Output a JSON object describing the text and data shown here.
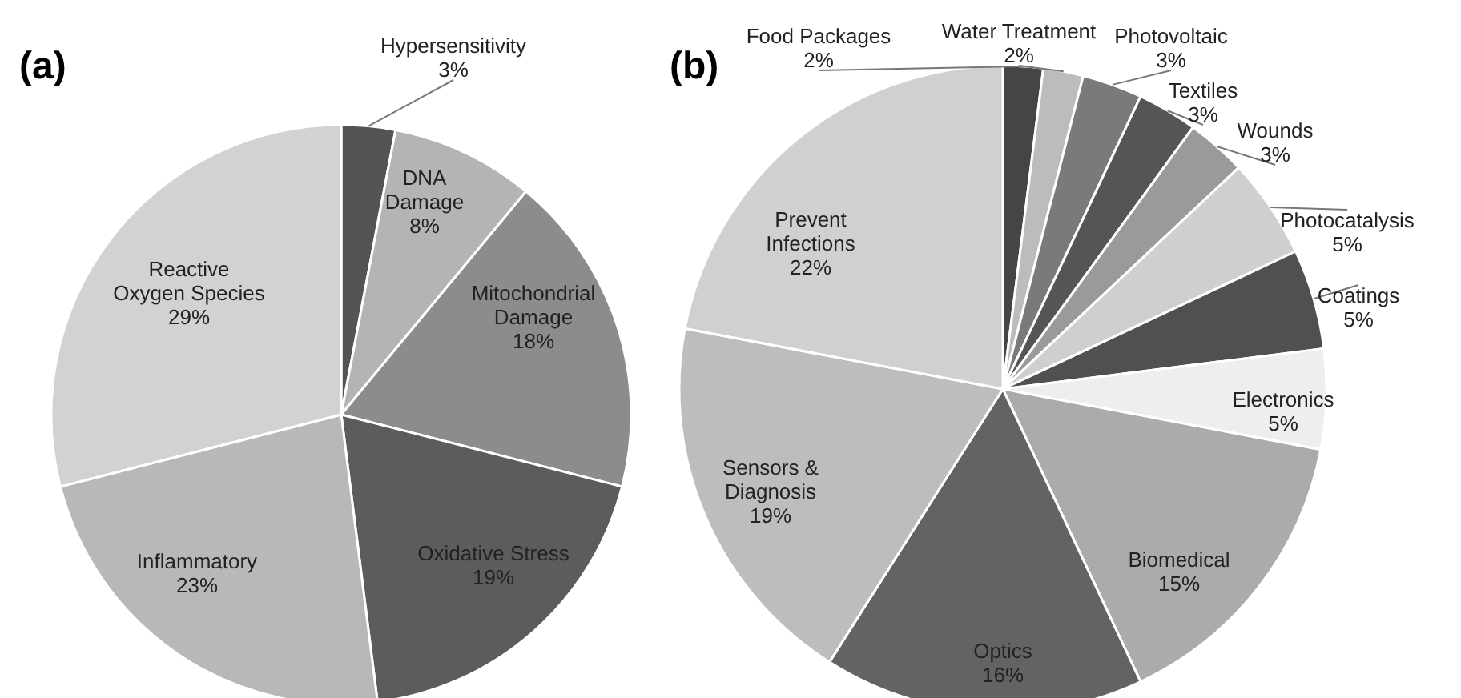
{
  "chart_data": [
    {
      "type": "pie",
      "title": "(a)",
      "categories": [
        "Hypersensitivity",
        "DNA Damage",
        "Mitochondrial Damage",
        "Oxidative Stress",
        "Inflammatory",
        "Reactive Oxygen Species"
      ],
      "values": [
        3,
        8,
        18,
        19,
        23,
        29
      ],
      "value_labels": [
        "3%",
        "8%",
        "18%",
        "19%",
        "23%",
        "29%"
      ],
      "colors": [
        "#545454",
        "#b4b4b4",
        "#8c8c8c",
        "#5c5c5c",
        "#b8b8b8",
        "#d2d2d2"
      ]
    },
    {
      "type": "pie",
      "title": "(b)",
      "categories": [
        "Food Packages",
        "Water Treatment",
        "Photovoltaic",
        "Textiles",
        "Wounds",
        "Photocatalysis",
        "Coatings",
        "Electronics",
        "Biomedical",
        "Optics",
        "Sensors & Diagnosis",
        "Prevent Infections"
      ],
      "values": [
        2,
        2,
        3,
        3,
        3,
        5,
        5,
        5,
        15,
        16,
        19,
        22
      ],
      "value_labels": [
        "2%",
        "2%",
        "3%",
        "3%",
        "3%",
        "5%",
        "5%",
        "5%",
        "15%",
        "16%",
        "19%",
        "22%"
      ],
      "colors": [
        "#454545",
        "#bcbcbc",
        "#7a7a7a",
        "#555555",
        "#9a9a9a",
        "#cfcfcf",
        "#505050",
        "#eeeeee",
        "#ababab",
        "#636363",
        "#bdbdbd",
        "#d0d0d0"
      ]
    }
  ]
}
